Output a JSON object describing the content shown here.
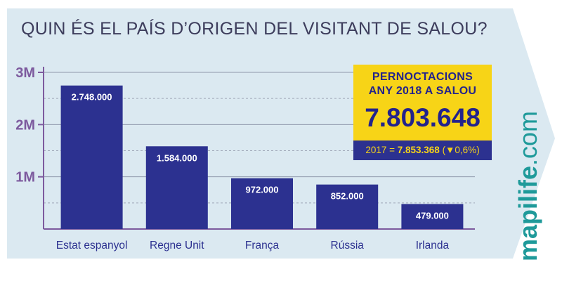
{
  "title": "QUIN ÉS EL PAÍS D’ORIGEN DEL VISITANT DE SALOU?",
  "callout": {
    "label_lines": [
      "PERNOCTACIONS",
      "ANY 2018 A SALOU"
    ],
    "value": "7.803.648",
    "comparison_prefix": "2017 = ",
    "comparison_value": "7.853.368",
    "comparison_change": "(▼0,6%)"
  },
  "brand": {
    "bold": "mapilife",
    "rest": ".com"
  },
  "colors": {
    "background_panel": "#dbe9f1",
    "bar": "#2c3190",
    "axis": "#7d5a9e",
    "highlight": "#f7d417",
    "brand": "#1f9a9a"
  },
  "chart_data": {
    "type": "bar",
    "categories": [
      "Estat espanyol",
      "Regne Unit",
      "França",
      "Rússia",
      "Irlanda"
    ],
    "values": [
      2748000,
      1584000,
      972000,
      852000,
      479000
    ],
    "data_labels": [
      "2.748.000",
      "1.584.000",
      "972.000",
      "852.000",
      "479.000"
    ],
    "y_ticks": [
      {
        "value": 1000000,
        "label": "1M"
      },
      {
        "value": 2000000,
        "label": "2M"
      },
      {
        "value": 3000000,
        "label": "3M"
      }
    ],
    "ylim": [
      0,
      3000000
    ],
    "grid": true,
    "xlabel": "",
    "ylabel": ""
  }
}
